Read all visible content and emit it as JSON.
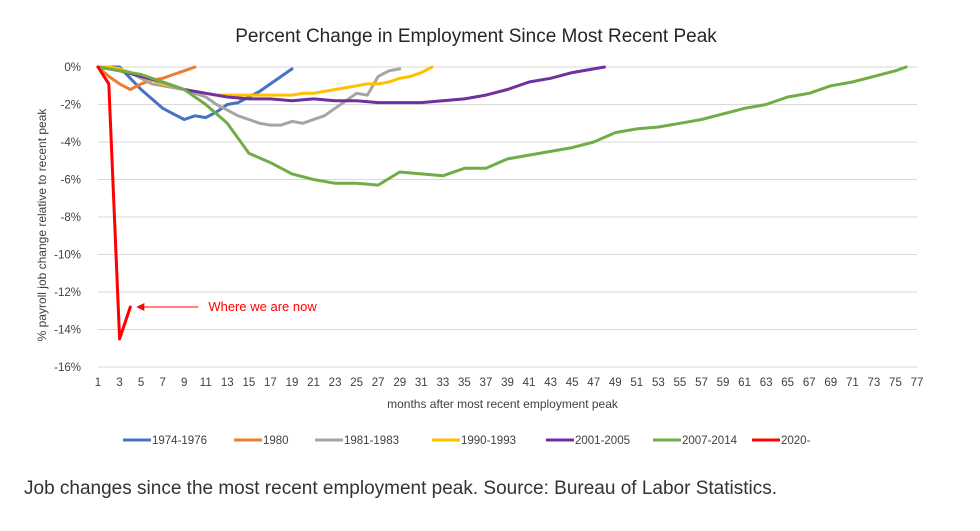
{
  "chart_data": {
    "type": "line",
    "title": "Percent Change in Employment Since Most Recent Peak",
    "xlabel": "months after most recent employment peak",
    "ylabel": "% payroll job change relative to recent peak",
    "xlim": [
      1,
      77
    ],
    "ylim": [
      -16,
      0
    ],
    "x_ticks": [
      1,
      3,
      5,
      7,
      9,
      11,
      13,
      15,
      17,
      19,
      21,
      23,
      25,
      27,
      29,
      31,
      33,
      35,
      37,
      39,
      41,
      43,
      45,
      47,
      49,
      51,
      53,
      55,
      57,
      59,
      61,
      63,
      65,
      67,
      69,
      71,
      73,
      75,
      77
    ],
    "y_ticks": [
      0,
      -2,
      -4,
      -6,
      -8,
      -10,
      -12,
      -14,
      -16
    ],
    "y_tick_labels": [
      "0%",
      "-2%",
      "-4%",
      "-6%",
      "-8%",
      "-10%",
      "-12%",
      "-14%",
      "-16%"
    ],
    "grid": "horizontal",
    "legend_position": "bottom",
    "series": [
      {
        "name": "1974-1976",
        "color": "#4472C4",
        "x": [
          1,
          2,
          3,
          4,
          5,
          6,
          7,
          8,
          9,
          10,
          11,
          12,
          13,
          14,
          15,
          16,
          17,
          18,
          19
        ],
        "y": [
          0,
          0,
          0,
          -0.6,
          -1.2,
          -1.7,
          -2.2,
          -2.5,
          -2.8,
          -2.6,
          -2.7,
          -2.4,
          -2.0,
          -1.9,
          -1.6,
          -1.3,
          -0.9,
          -0.5,
          -0.1
        ]
      },
      {
        "name": "1980",
        "color": "#ED7D31",
        "x": [
          1,
          2,
          3,
          4,
          5,
          6,
          7,
          8,
          9,
          10
        ],
        "y": [
          0,
          -0.5,
          -0.9,
          -1.2,
          -0.9,
          -0.7,
          -0.6,
          -0.4,
          -0.2,
          0
        ]
      },
      {
        "name": "1981-1983",
        "color": "#A5A5A5",
        "x": [
          1,
          2,
          3,
          4,
          5,
          6,
          7,
          8,
          9,
          10,
          11,
          12,
          13,
          14,
          15,
          16,
          17,
          18,
          19,
          20,
          21,
          22,
          23,
          24,
          25,
          26,
          27,
          28,
          29
        ],
        "y": [
          0,
          0,
          -0.1,
          -0.3,
          -0.6,
          -0.9,
          -1.0,
          -1.1,
          -1.2,
          -1.4,
          -1.6,
          -2.0,
          -2.3,
          -2.6,
          -2.8,
          -3.0,
          -3.1,
          -3.1,
          -2.9,
          -3.0,
          -2.8,
          -2.6,
          -2.2,
          -1.8,
          -1.4,
          -1.5,
          -0.5,
          -0.2,
          -0.1
        ]
      },
      {
        "name": "1990-1993",
        "color": "#FFC000",
        "x": [
          1,
          2,
          3,
          4,
          5,
          6,
          7,
          8,
          9,
          10,
          11,
          12,
          13,
          14,
          15,
          16,
          17,
          18,
          19,
          20,
          21,
          22,
          23,
          24,
          25,
          26,
          27,
          28,
          29,
          30,
          31,
          32
        ],
        "y": [
          0,
          0,
          -0.1,
          -0.3,
          -0.5,
          -0.7,
          -0.9,
          -1.0,
          -1.2,
          -1.3,
          -1.4,
          -1.5,
          -1.5,
          -1.5,
          -1.5,
          -1.5,
          -1.5,
          -1.5,
          -1.5,
          -1.4,
          -1.4,
          -1.3,
          -1.2,
          -1.1,
          -1.0,
          -0.9,
          -0.9,
          -0.8,
          -0.6,
          -0.5,
          -0.3,
          0
        ]
      },
      {
        "name": "2001-2005",
        "color": "#7030A0",
        "x": [
          1,
          3,
          5,
          7,
          9,
          11,
          13,
          15,
          17,
          19,
          21,
          23,
          25,
          27,
          29,
          31,
          33,
          35,
          37,
          39,
          41,
          43,
          45,
          47,
          48
        ],
        "y": [
          0,
          -0.2,
          -0.5,
          -0.8,
          -1.2,
          -1.4,
          -1.6,
          -1.7,
          -1.7,
          -1.8,
          -1.7,
          -1.8,
          -1.8,
          -1.9,
          -1.9,
          -1.9,
          -1.8,
          -1.7,
          -1.5,
          -1.2,
          -0.8,
          -0.6,
          -0.3,
          -0.1,
          0
        ]
      },
      {
        "name": "2007-2014",
        "color": "#70AD47",
        "x": [
          1,
          3,
          5,
          7,
          9,
          11,
          13,
          15,
          17,
          19,
          21,
          23,
          25,
          27,
          29,
          31,
          33,
          35,
          37,
          39,
          41,
          43,
          45,
          47,
          49,
          51,
          53,
          55,
          57,
          59,
          61,
          63,
          65,
          67,
          69,
          71,
          73,
          75,
          76
        ],
        "y": [
          0,
          -0.2,
          -0.4,
          -0.8,
          -1.2,
          -2.0,
          -3.0,
          -4.6,
          -5.1,
          -5.7,
          -6.0,
          -6.2,
          -6.2,
          -6.3,
          -5.6,
          -5.7,
          -5.8,
          -5.4,
          -5.4,
          -4.9,
          -4.7,
          -4.5,
          -4.3,
          -4.0,
          -3.5,
          -3.3,
          -3.2,
          -3.0,
          -2.8,
          -2.5,
          -2.2,
          -2.0,
          -1.6,
          -1.4,
          -1.0,
          -0.8,
          -0.5,
          -0.2,
          0
        ]
      },
      {
        "name": "2020-",
        "color": "#FF0000",
        "x": [
          1,
          2,
          3,
          4
        ],
        "y": [
          0,
          -0.9,
          -14.5,
          -12.8
        ]
      }
    ],
    "annotations": [
      {
        "text": "Where we are now",
        "x": 4,
        "y": -12.8,
        "color": "#FF0000"
      }
    ]
  },
  "caption": "Job changes since the most recent employment peak. Source: Bureau of Labor Statistics."
}
